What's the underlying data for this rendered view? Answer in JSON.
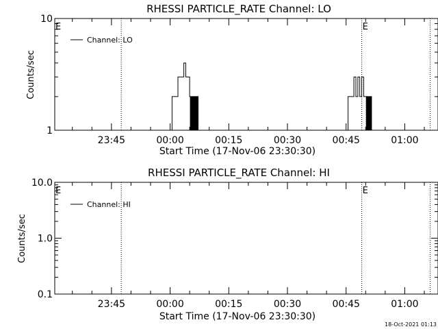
{
  "chart_data": [
    {
      "type": "line",
      "title": "RHESSI PARTICLE_RATE Channel: LO",
      "xlabel": "Start Time (17-Nov-06 23:30:30)",
      "ylabel": "Counts/sec",
      "yscale": "log",
      "ylim": [
        1,
        10
      ],
      "xlim": [
        "23:30:30",
        "01:08:30"
      ],
      "xticks": [
        "23:45",
        "00:00",
        "00:15",
        "00:30",
        "00:45",
        "01:00"
      ],
      "yticks": [
        "1",
        "10"
      ],
      "legend": {
        "position": "top-left",
        "entries": [
          "Channel: LO"
        ]
      },
      "markers": [
        {
          "label": "E",
          "time": "23:30:30"
        },
        {
          "label": "E",
          "time": "00:49:00"
        }
      ],
      "vlines": [
        "23:47:30",
        "00:49:00",
        "01:06:30"
      ],
      "series": [
        {
          "name": "Channel: LO",
          "x": [
            "00:00:00",
            "00:00:30",
            "00:01:00",
            "00:01:30",
            "00:02:00",
            "00:02:30",
            "00:03:00",
            "00:03:30",
            "00:04:00",
            "00:04:30",
            "00:05:00",
            "00:05:10",
            "00:05:20",
            "00:05:30",
            "00:05:40",
            "00:05:50",
            "00:06:00",
            "00:06:10",
            "00:06:20",
            "00:06:30",
            "00:06:40",
            "00:06:50",
            "00:07:00",
            "00:07:10",
            "00:07:20",
            "00:45:00",
            "00:45:30",
            "00:46:00",
            "00:46:30",
            "00:47:00",
            "00:47:30",
            "00:48:00",
            "00:48:30",
            "00:49:00",
            "00:49:30",
            "00:50:00",
            "00:50:10",
            "00:50:20",
            "00:50:30",
            "00:50:40",
            "00:50:50",
            "00:51:00",
            "00:51:10",
            "00:51:20",
            "00:51:30"
          ],
          "values": [
            1,
            2,
            2,
            2,
            3,
            3,
            3,
            4,
            3,
            3,
            2,
            1,
            2,
            1,
            2,
            1,
            2,
            1,
            2,
            1,
            2,
            1,
            2,
            1,
            1,
            1,
            2,
            2,
            2,
            3,
            2,
            3,
            2,
            3,
            2,
            2,
            1,
            2,
            1,
            2,
            1,
            2,
            1,
            2,
            1
          ]
        }
      ]
    },
    {
      "type": "line",
      "title": "RHESSI PARTICLE_RATE Channel: HI",
      "xlabel": "Start Time (17-Nov-06 23:30:30)",
      "ylabel": "Counts/sec",
      "yscale": "log",
      "ylim": [
        0.1,
        10
      ],
      "xlim": [
        "23:30:30",
        "01:08:30"
      ],
      "xticks": [
        "23:45",
        "00:00",
        "00:15",
        "00:30",
        "00:45",
        "01:00"
      ],
      "yticks": [
        "0.1",
        "1.0",
        "10.0"
      ],
      "legend": {
        "position": "top-left",
        "entries": [
          "Channel: HI"
        ]
      },
      "markers": [
        {
          "label": "E",
          "time": "23:30:30"
        },
        {
          "label": "E",
          "time": "00:49:00"
        }
      ],
      "vlines": [
        "23:47:30",
        "00:49:00",
        "01:06:30"
      ],
      "series": [
        {
          "name": "Channel: HI",
          "x": [],
          "values": []
        }
      ]
    }
  ],
  "footer": {
    "timestamp": "18-Oct-2021 01:13"
  }
}
